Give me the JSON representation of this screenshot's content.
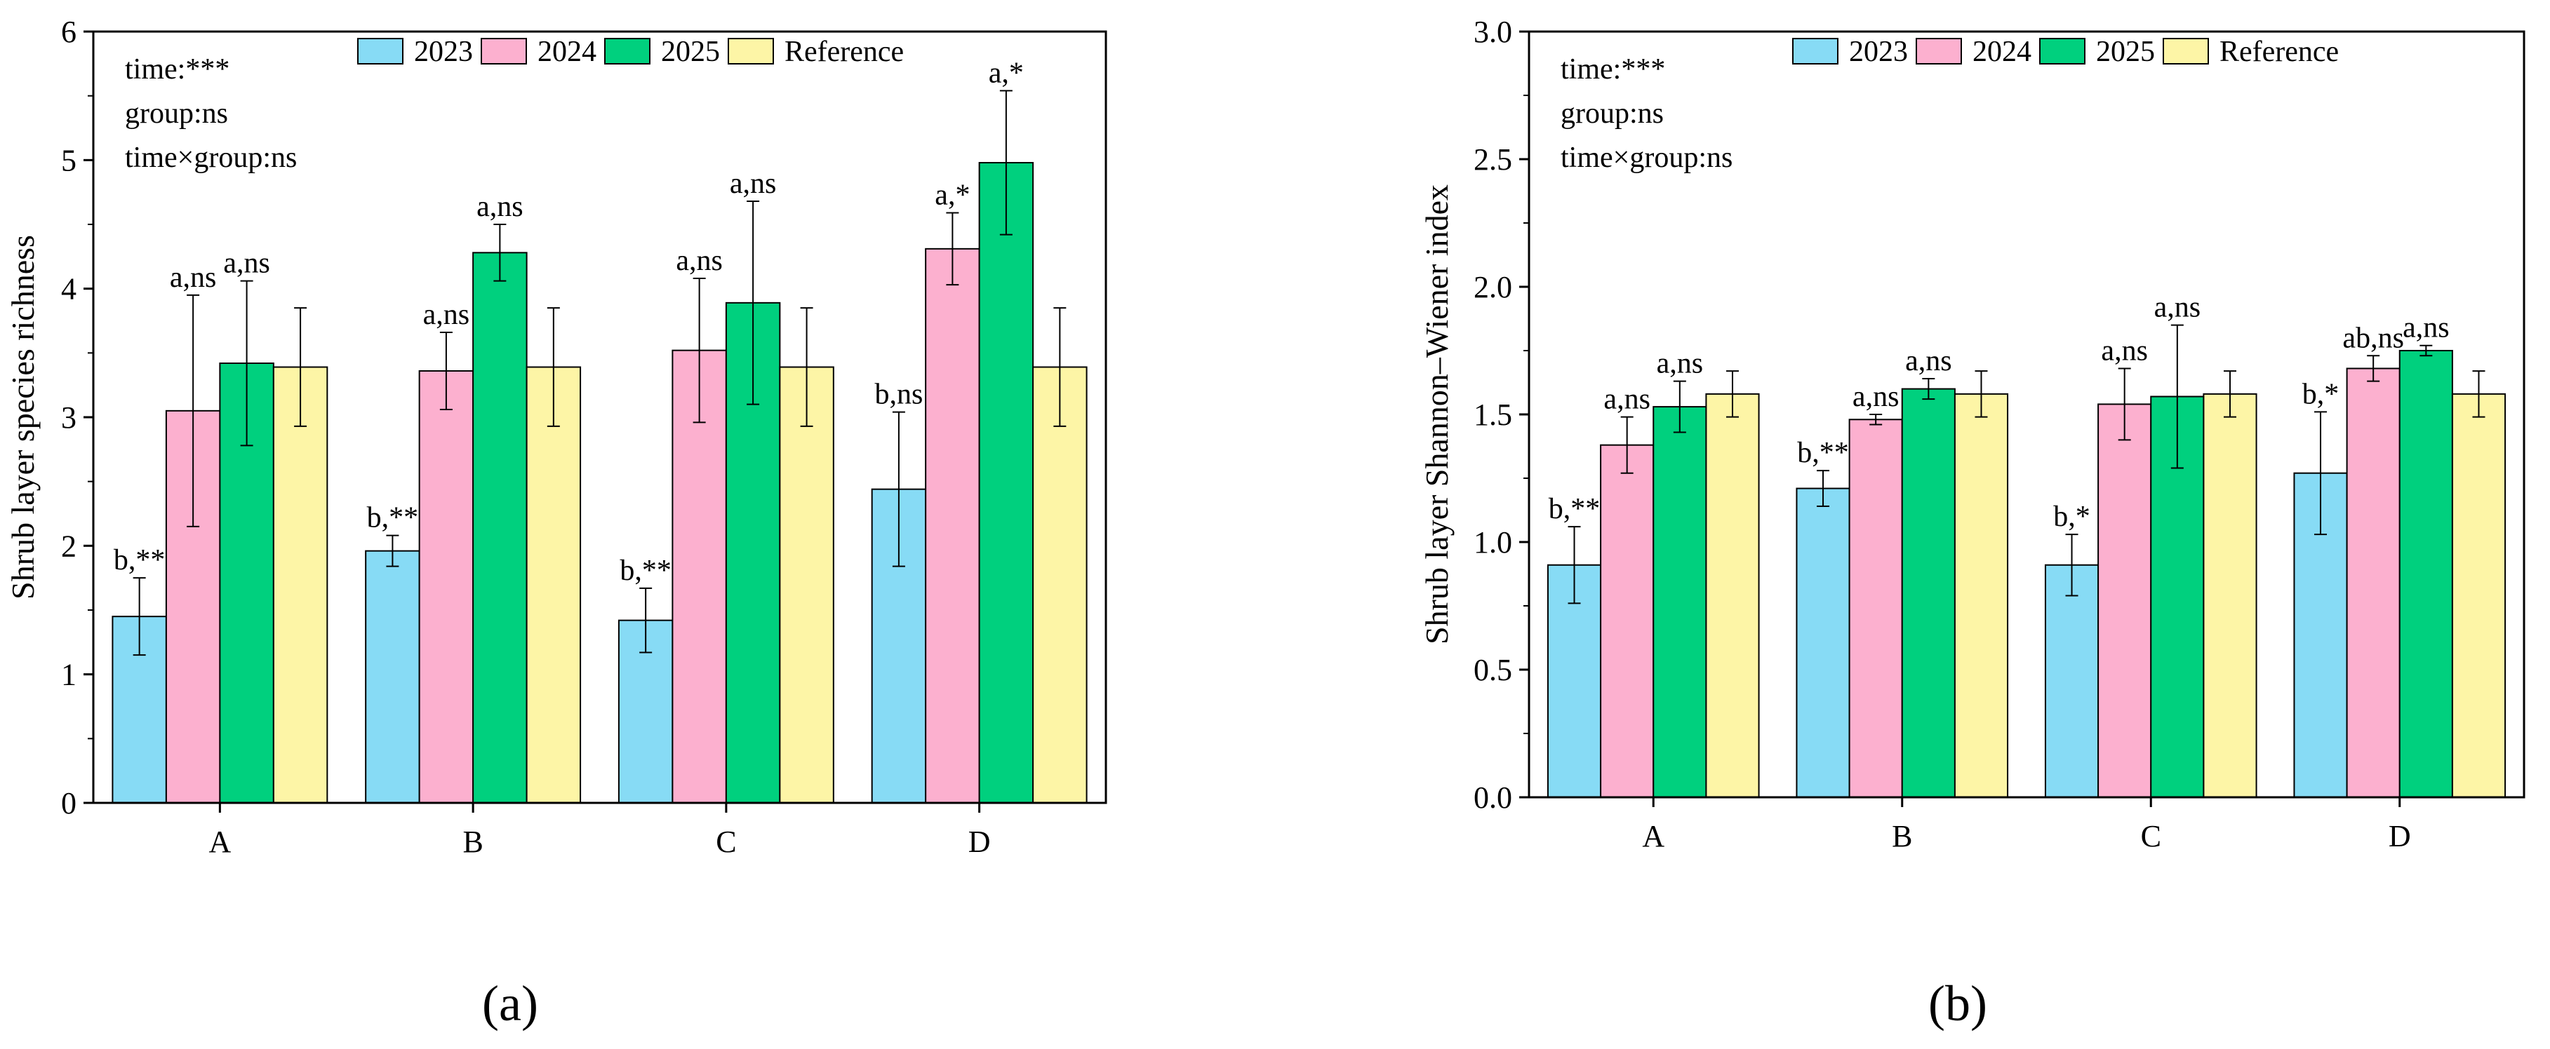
{
  "figure": {
    "panel_labels": [
      "(a)",
      "(b)"
    ]
  },
  "colors": {
    "2023": "#87dbf5",
    "2024": "#fcb0cf",
    "2025": "#00d07e",
    "Reference": "#fdf5a6"
  },
  "chart_data": [
    {
      "type": "bar",
      "panel": "(a)",
      "title": "",
      "xlabel": "",
      "ylabel": "Shrub layer species richness",
      "ylim": [
        0,
        6
      ],
      "yticks": [
        "0",
        "1",
        "2",
        "3",
        "4",
        "5",
        "6"
      ],
      "categories": [
        "A",
        "B",
        "C",
        "D"
      ],
      "legend": [
        "2023",
        "2024",
        "2025",
        "Reference"
      ],
      "legend_position": "top-center",
      "stats_text": [
        "time:***",
        "group:ns",
        "time×group:ns"
      ],
      "series": [
        {
          "name": "2023",
          "values": [
            1.45,
            1.96,
            1.42,
            2.44
          ],
          "errors": [
            0.3,
            0.12,
            0.25,
            0.6
          ],
          "labels": [
            "b,**",
            "b,**",
            "b,**",
            "b,ns"
          ]
        },
        {
          "name": "2024",
          "values": [
            3.05,
            3.36,
            3.52,
            4.31
          ],
          "errors": [
            0.9,
            0.3,
            0.56,
            0.28
          ],
          "labels": [
            "a,ns",
            "a,ns",
            "a,ns",
            "a,*"
          ]
        },
        {
          "name": "2025",
          "values": [
            3.42,
            4.28,
            3.89,
            4.98
          ],
          "errors": [
            0.64,
            0.22,
            0.79,
            0.56
          ],
          "labels": [
            "a,ns",
            "a,ns",
            "a,ns",
            "a,*"
          ]
        },
        {
          "name": "Reference",
          "values": [
            3.39,
            3.39,
            3.39,
            3.39
          ],
          "errors": [
            0.46,
            0.46,
            0.46,
            0.46
          ],
          "labels": [
            "",
            "",
            "",
            ""
          ]
        }
      ]
    },
    {
      "type": "bar",
      "panel": "(b)",
      "title": "",
      "xlabel": "",
      "ylabel": "Shrub layer Shannon–Wiener index",
      "ylim": [
        0,
        3
      ],
      "yticks": [
        "0.0",
        "0.5",
        "1.0",
        "1.5",
        "2.0",
        "2.5",
        "3.0"
      ],
      "categories": [
        "A",
        "B",
        "C",
        "D"
      ],
      "legend": [
        "2023",
        "2024",
        "2025",
        "Reference"
      ],
      "legend_position": "top-center",
      "stats_text": [
        "time:***",
        "group:ns",
        "time×group:ns"
      ],
      "series": [
        {
          "name": "2023",
          "values": [
            0.91,
            1.21,
            0.91,
            1.27
          ],
          "errors": [
            0.15,
            0.07,
            0.12,
            0.24
          ],
          "labels": [
            "b,**",
            "b,**",
            "b,*",
            "b,*"
          ]
        },
        {
          "name": "2024",
          "values": [
            1.38,
            1.48,
            1.54,
            1.68
          ],
          "errors": [
            0.11,
            0.02,
            0.14,
            0.05
          ],
          "labels": [
            "a,ns",
            "a,ns",
            "a,ns",
            "ab,ns"
          ]
        },
        {
          "name": "2025",
          "values": [
            1.53,
            1.6,
            1.57,
            1.75
          ],
          "errors": [
            0.1,
            0.04,
            0.28,
            0.02
          ],
          "labels": [
            "a,ns",
            "a,ns",
            "a,ns",
            "a,ns"
          ]
        },
        {
          "name": "Reference",
          "values": [
            1.58,
            1.58,
            1.58,
            1.58
          ],
          "errors": [
            0.09,
            0.09,
            0.09,
            0.09
          ],
          "labels": [
            "",
            "",
            "",
            ""
          ]
        }
      ]
    }
  ]
}
